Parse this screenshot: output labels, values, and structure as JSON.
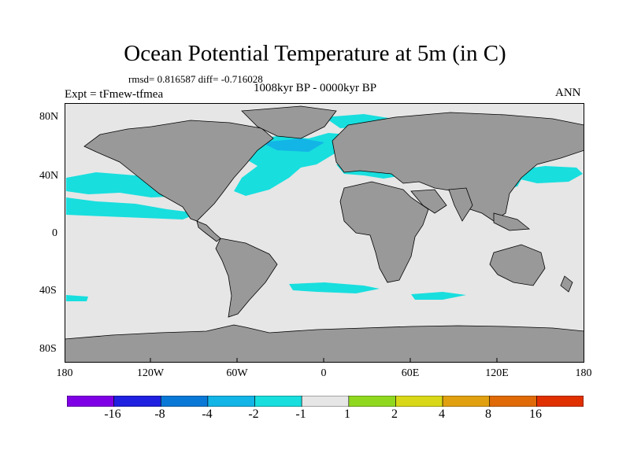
{
  "header": {
    "title": "Ocean Potential Temperature at 5m (in C)",
    "stats": "rmsd= 0.816587 diff= -0.716028",
    "experiment": "Expt = tFmew-tfmea",
    "period": "1008kyr BP - 0000kyr BP",
    "season": "ANN"
  },
  "axes": {
    "lat_ticks": [
      "80N",
      "40N",
      "0",
      "40S",
      "80S"
    ],
    "lon_ticks": [
      "180",
      "120W",
      "60W",
      "0",
      "60E",
      "120E",
      "180"
    ]
  },
  "colors": {
    "land": "#999999",
    "neutral": "#e6e6e6",
    "outline": "#000000"
  },
  "colorbar": {
    "labels": [
      "-16",
      "-8",
      "-4",
      "-2",
      "-1",
      "1",
      "2",
      "4",
      "8",
      "16"
    ],
    "colors": [
      "#8000e6",
      "#2020e0",
      "#0a78d6",
      "#13b4e6",
      "#18dede",
      "#e6e6e6",
      "#90d820",
      "#d8d818",
      "#e0a010",
      "#e06a08",
      "#e03000"
    ]
  }
}
